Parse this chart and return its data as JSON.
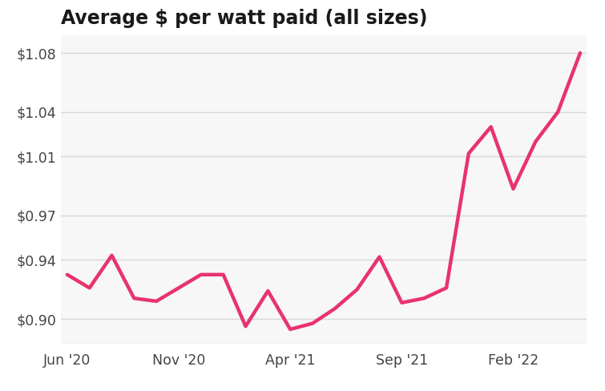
{
  "title": "Average $ per watt paid (all sizes)",
  "line_color": "#E8336D",
  "line_width": 3.2,
  "background_color": "#ffffff",
  "plot_bg_color": "#f7f7f7",
  "grid_color": "#d8d8d8",
  "title_color": "#1a1a1a",
  "tick_color": "#444444",
  "ylim": [
    0.883,
    1.092
  ],
  "yticks": [
    0.9,
    0.94,
    0.97,
    1.01,
    1.04,
    1.08
  ],
  "xtick_labels": [
    "Jun '20",
    "Nov '20",
    "Apr '21",
    "Sep '21",
    "Feb '22"
  ],
  "x_values": [
    0,
    1,
    2,
    3,
    4,
    5,
    6,
    7,
    8,
    9,
    10,
    11,
    12,
    13,
    14,
    15,
    16,
    17,
    18,
    19,
    20,
    21,
    22,
    23
  ],
  "y_values": [
    0.93,
    0.921,
    0.943,
    0.914,
    0.912,
    0.921,
    0.93,
    0.93,
    0.895,
    0.919,
    0.893,
    0.897,
    0.907,
    0.92,
    0.942,
    0.911,
    0.914,
    0.921,
    1.012,
    1.03,
    0.988,
    1.02,
    1.04,
    1.08
  ],
  "xtick_positions": [
    0,
    5,
    10,
    15,
    20
  ],
  "title_fontsize": 17,
  "tick_fontsize": 12.5,
  "figsize": [
    7.55,
    4.88
  ],
  "dpi": 100
}
